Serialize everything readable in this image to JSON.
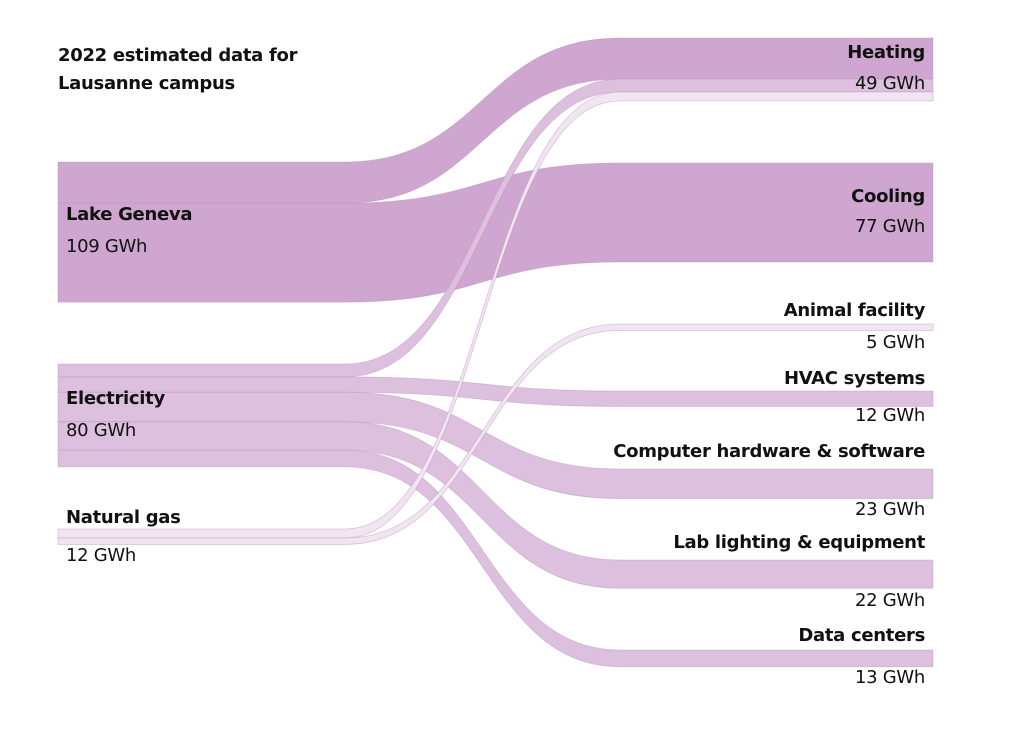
{
  "title_lines": [
    "2022 estimated data for",
    "Lausanne campus"
  ],
  "unit": "GWh",
  "colors": {
    "lake": "#cea6cf",
    "electricity": "#dcc0dd",
    "gas": "#f1e5f1",
    "edge": "#b58cb7"
  },
  "chart_data": {
    "type": "sankey",
    "sources": [
      {
        "id": "lake",
        "name": "Lake Geneva",
        "value": 109,
        "value_label": "109 GWh"
      },
      {
        "id": "electricity",
        "name": "Electricity",
        "value": 80,
        "value_label": "80 GWh"
      },
      {
        "id": "gas",
        "name": "Natural gas",
        "value": 12,
        "value_label": "12 GWh"
      }
    ],
    "targets": [
      {
        "id": "heating",
        "name": "Heating",
        "value": 49,
        "value_label": "49 GWh"
      },
      {
        "id": "cooling",
        "name": "Cooling",
        "value": 77,
        "value_label": "77 GWh"
      },
      {
        "id": "animal",
        "name": "Animal facility",
        "value": 5,
        "value_label": "5 GWh"
      },
      {
        "id": "hvac",
        "name": "HVAC systems",
        "value": 12,
        "value_label": "12 GWh"
      },
      {
        "id": "computer",
        "name": "Computer hardware & software",
        "value": 23,
        "value_label": "23 GWh"
      },
      {
        "id": "lab",
        "name": "Lab lighting & equipment",
        "value": 22,
        "value_label": "22 GWh"
      },
      {
        "id": "data",
        "name": "Data centers",
        "value": 13,
        "value_label": "13 GWh"
      }
    ],
    "links": [
      {
        "source": "lake",
        "target": "heating",
        "value": 32
      },
      {
        "source": "lake",
        "target": "cooling",
        "value": 77
      },
      {
        "source": "electricity",
        "target": "heating",
        "value": 10
      },
      {
        "source": "electricity",
        "target": "hvac",
        "value": 12
      },
      {
        "source": "electricity",
        "target": "computer",
        "value": 23
      },
      {
        "source": "electricity",
        "target": "lab",
        "value": 22
      },
      {
        "source": "electricity",
        "target": "data",
        "value": 13
      },
      {
        "source": "gas",
        "target": "heating",
        "value": 7
      },
      {
        "source": "gas",
        "target": "animal",
        "value": 5
      }
    ]
  }
}
